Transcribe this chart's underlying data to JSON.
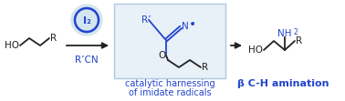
{
  "background_color": "#ffffff",
  "box_color": "#e8f0f8",
  "box_edge_color": "#b0c8e0",
  "arrow_color": "#000000",
  "circle_fill": "#d5e5f0",
  "circle_edge": "#2244cc",
  "text_blue": "#2244cc",
  "text_black": "#222222",
  "i2_text": "I₂",
  "rcn_text": "R’CN",
  "caption_line1": "catalytic harnessing",
  "caption_line2": "of imidate radicals",
  "beta_label": "β C-H amination",
  "fig_width": 3.78,
  "fig_height": 1.11,
  "dpi": 100
}
